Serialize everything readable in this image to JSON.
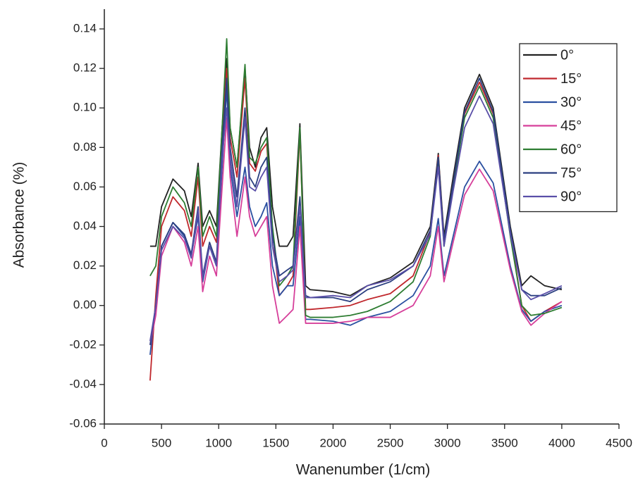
{
  "chart_data": {
    "type": "line",
    "x_label": "Wanenumber (1/cm)",
    "y_label": "Absorbance (%)",
    "xlim": [
      0,
      4500
    ],
    "ylim": [
      -0.06,
      0.15
    ],
    "xticks": [
      0,
      500,
      1000,
      1500,
      2000,
      2500,
      3000,
      3500,
      4000,
      4500
    ],
    "yticks": [
      -0.06,
      -0.04,
      -0.02,
      {
        "value": 0,
        "label": "0.00"
      },
      0.02,
      0.04,
      0.06,
      0.08,
      {
        "value": 0.1,
        "label": "0.10"
      },
      0.12,
      0.14
    ],
    "grid": false,
    "legend": "upper right",
    "x": [
      400,
      450,
      500,
      600,
      700,
      760,
      820,
      860,
      920,
      980,
      1030,
      1070,
      1100,
      1160,
      1230,
      1270,
      1320,
      1370,
      1420,
      1470,
      1530,
      1600,
      1650,
      1710,
      1760,
      1800,
      2000,
      2150,
      2300,
      2500,
      2700,
      2850,
      2920,
      2970,
      3050,
      3150,
      3280,
      3400,
      3550,
      3650,
      3730,
      3850,
      4000
    ],
    "series": [
      {
        "name": "0°",
        "color": "#222222",
        "values": [
          0.03,
          0.03,
          0.05,
          0.064,
          0.058,
          0.045,
          0.072,
          0.04,
          0.048,
          0.04,
          0.09,
          0.125,
          0.09,
          0.07,
          0.12,
          0.08,
          0.07,
          0.085,
          0.09,
          0.05,
          0.03,
          0.03,
          0.035,
          0.092,
          0.01,
          0.008,
          0.007,
          0.005,
          0.01,
          0.014,
          0.022,
          0.04,
          0.077,
          0.035,
          0.065,
          0.1,
          0.117,
          0.1,
          0.04,
          0.01,
          0.015,
          0.01,
          0.008
        ]
      },
      {
        "name": "15°",
        "color": "#c0282d",
        "values": [
          -0.038,
          0.005,
          0.04,
          0.055,
          0.048,
          0.035,
          0.065,
          0.03,
          0.04,
          0.032,
          0.085,
          0.12,
          0.085,
          0.065,
          0.115,
          0.072,
          0.068,
          0.078,
          0.082,
          0.038,
          0.005,
          0.01,
          0.015,
          0.088,
          -0.002,
          -0.002,
          -0.001,
          0.0,
          0.003,
          0.006,
          0.015,
          0.037,
          0.076,
          0.032,
          0.062,
          0.097,
          0.113,
          0.097,
          0.037,
          0.0,
          -0.008,
          -0.003,
          0.002
        ]
      },
      {
        "name": "30°",
        "color": "#2a4fa0",
        "values": [
          -0.025,
          0.0,
          0.03,
          0.042,
          0.035,
          0.025,
          0.045,
          0.012,
          0.03,
          0.02,
          0.07,
          0.11,
          0.07,
          0.045,
          0.07,
          0.05,
          0.04,
          0.045,
          0.052,
          0.02,
          0.005,
          0.01,
          0.01,
          0.045,
          -0.007,
          -0.007,
          -0.008,
          -0.01,
          -0.006,
          -0.003,
          0.005,
          0.02,
          0.044,
          0.015,
          0.035,
          0.06,
          0.073,
          0.062,
          0.02,
          -0.002,
          -0.008,
          -0.003,
          0.0
        ]
      },
      {
        "name": "45°",
        "color": "#d63f9a",
        "values": [
          -0.02,
          -0.005,
          0.025,
          0.04,
          0.032,
          0.02,
          0.04,
          0.007,
          0.025,
          0.015,
          0.06,
          0.095,
          0.065,
          0.035,
          0.065,
          0.045,
          0.035,
          0.04,
          0.045,
          0.01,
          -0.009,
          -0.005,
          -0.002,
          0.04,
          -0.009,
          -0.009,
          -0.009,
          -0.008,
          -0.006,
          -0.006,
          0.0,
          0.015,
          0.04,
          0.012,
          0.032,
          0.056,
          0.069,
          0.058,
          0.018,
          -0.003,
          -0.01,
          -0.004,
          0.002
        ]
      },
      {
        "name": "60°",
        "color": "#2e7d32",
        "values": [
          0.015,
          0.02,
          0.045,
          0.06,
          0.052,
          0.04,
          0.07,
          0.035,
          0.045,
          0.035,
          0.09,
          0.135,
          0.09,
          0.07,
          0.122,
          0.075,
          0.072,
          0.08,
          0.085,
          0.04,
          0.01,
          0.015,
          0.02,
          0.09,
          -0.005,
          -0.006,
          -0.006,
          -0.005,
          -0.003,
          0.002,
          0.012,
          0.035,
          0.075,
          0.03,
          0.06,
          0.095,
          0.111,
          0.095,
          0.035,
          0.0,
          -0.005,
          -0.004,
          -0.001
        ]
      },
      {
        "name": "75°",
        "color": "#2b3f80",
        "values": [
          -0.02,
          0.0,
          0.03,
          0.042,
          0.036,
          0.026,
          0.05,
          0.015,
          0.032,
          0.022,
          0.08,
          0.115,
          0.08,
          0.055,
          0.1,
          0.065,
          0.06,
          0.07,
          0.075,
          0.035,
          0.015,
          0.018,
          0.02,
          0.055,
          0.005,
          0.004,
          0.004,
          0.002,
          0.008,
          0.012,
          0.02,
          0.038,
          0.075,
          0.033,
          0.062,
          0.098,
          0.115,
          0.098,
          0.038,
          0.008,
          0.005,
          0.005,
          0.009
        ]
      },
      {
        "name": "90°",
        "color": "#5a4fa8",
        "values": [
          -0.018,
          0.0,
          0.028,
          0.04,
          0.034,
          0.024,
          0.048,
          0.014,
          0.03,
          0.02,
          0.075,
          0.1,
          0.075,
          0.05,
          0.095,
          0.06,
          0.058,
          0.065,
          0.07,
          0.03,
          0.012,
          0.015,
          0.018,
          0.05,
          0.004,
          0.004,
          0.005,
          0.004,
          0.01,
          0.013,
          0.02,
          0.036,
          0.07,
          0.03,
          0.058,
          0.09,
          0.106,
          0.092,
          0.036,
          0.008,
          0.003,
          0.006,
          0.01
        ]
      }
    ]
  }
}
